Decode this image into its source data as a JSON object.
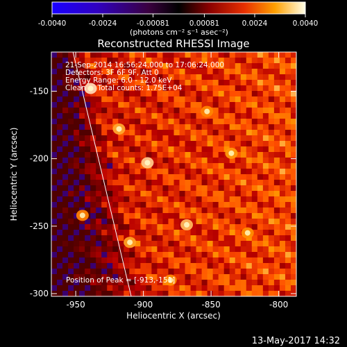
{
  "colorbar": {
    "ticks": [
      "-0.0040",
      "-0.0024",
      "-0.00081",
      "0.00081",
      "0.0024",
      "0.0040"
    ],
    "unit": "(photons cm⁻² s⁻¹ asec⁻²)"
  },
  "footer": {
    "timestamp": "13-May-2017 14:32"
  },
  "annotations": {
    "time_range": "21-Sep-2014 16:56:24.000 to 17:06:24.000",
    "detectors": "Detectors: 3F 6F 9F, Att 0",
    "energy": "Energy Range: 6.0 - 12.0 keV",
    "clean": "Clean     Total counts: 1.75E+04",
    "peak": "Position of Peak = [-913,-151]"
  },
  "chart_data": {
    "type": "heatmap",
    "title": "Reconstructed RHESSI Image",
    "xlabel": "Heliocentric X (arcsec)",
    "ylabel": "Heliocentric Y (arcsec)",
    "xlim": [
      -968,
      -787
    ],
    "ylim": [
      -302,
      -121
    ],
    "x_ticks": [
      -950,
      -900,
      -850,
      -800
    ],
    "y_ticks": [
      -150,
      -200,
      -250,
      -300
    ],
    "x_tick_labels": [
      "-950",
      "-900",
      "-850",
      "-800"
    ],
    "y_tick_labels": [
      "-150",
      "-200",
      "-250",
      "-300"
    ],
    "colorbar_range": [
      -0.004,
      0.004
    ],
    "colormap": "red-temperature",
    "limb_line": {
      "x": [
        -952,
        -909
      ],
      "y": [
        -121,
        -302
      ]
    },
    "peak_position": [
      -913,
      -151
    ],
    "bright_sources": [
      {
        "x": -939,
        "y": -148,
        "value": 0.004
      },
      {
        "x": -897,
        "y": -203,
        "value": 0.0036
      },
      {
        "x": -868,
        "y": -249,
        "value": 0.0032
      },
      {
        "x": -918,
        "y": -178,
        "value": 0.0028
      },
      {
        "x": -910,
        "y": -262,
        "value": 0.0027
      },
      {
        "x": -835,
        "y": -196,
        "value": 0.0025
      },
      {
        "x": -880,
        "y": -290,
        "value": 0.0022
      },
      {
        "x": -823,
        "y": -255,
        "value": 0.0022
      },
      {
        "x": -853,
        "y": -165,
        "value": 0.002
      },
      {
        "x": -945,
        "y": -242,
        "value": 0.0019
      }
    ]
  }
}
